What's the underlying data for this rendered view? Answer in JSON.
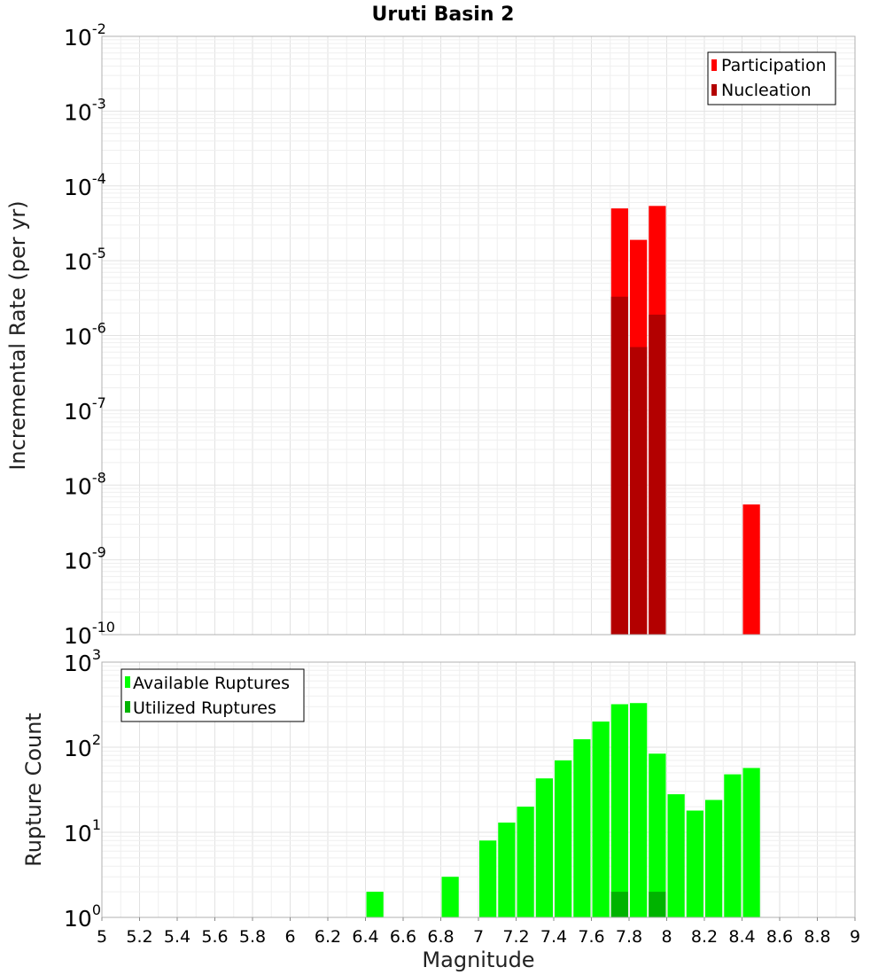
{
  "chart_data": [
    {
      "type": "bar",
      "title": "Uruti Basin 2",
      "xlabel": "",
      "ylabel": "Incremental Rate (per yr)",
      "yscale": "log",
      "ylim_exponents": [
        -10,
        -2
      ],
      "xlim": [
        5,
        9
      ],
      "grid": true,
      "legend_position": "top-right",
      "series": [
        {
          "name": "Participation",
          "color": "#ff0000",
          "points": [
            {
              "x": 7.75,
              "y": 5e-05
            },
            {
              "x": 7.85,
              "y": 1.9e-05
            },
            {
              "x": 7.95,
              "y": 5.4e-05
            },
            {
              "x": 8.45,
              "y": 5.5e-09
            }
          ]
        },
        {
          "name": "Nucleation",
          "color": "#b30000",
          "points": [
            {
              "x": 7.75,
              "y": 3.3e-06
            },
            {
              "x": 7.85,
              "y": 7e-07
            },
            {
              "x": 7.95,
              "y": 1.9e-06
            }
          ]
        }
      ]
    },
    {
      "type": "bar",
      "title": "",
      "xlabel": "Magnitude",
      "ylabel": "Rupture Count",
      "yscale": "log",
      "ylim_exponents": [
        0,
        3
      ],
      "xlim": [
        5,
        9
      ],
      "grid": true,
      "legend_position": "top-left",
      "x_ticks": [
        "5",
        "5.2",
        "5.4",
        "5.6",
        "5.8",
        "6",
        "6.2",
        "6.4",
        "6.6",
        "6.8",
        "7",
        "7.2",
        "7.4",
        "7.6",
        "7.8",
        "8",
        "8.2",
        "8.4",
        "8.6",
        "8.8",
        "9"
      ],
      "series": [
        {
          "name": "Available Ruptures",
          "color": "#00ff00",
          "points": [
            {
              "x": 6.45,
              "y": 2
            },
            {
              "x": 6.55,
              "y": 1
            },
            {
              "x": 6.85,
              "y": 3
            },
            {
              "x": 6.95,
              "y": 1
            },
            {
              "x": 7.05,
              "y": 8
            },
            {
              "x": 7.15,
              "y": 13
            },
            {
              "x": 7.25,
              "y": 20
            },
            {
              "x": 7.35,
              "y": 43
            },
            {
              "x": 7.45,
              "y": 70
            },
            {
              "x": 7.55,
              "y": 124
            },
            {
              "x": 7.65,
              "y": 200
            },
            {
              "x": 7.75,
              "y": 320
            },
            {
              "x": 7.85,
              "y": 330
            },
            {
              "x": 7.95,
              "y": 84
            },
            {
              "x": 8.05,
              "y": 28
            },
            {
              "x": 8.15,
              "y": 18
            },
            {
              "x": 8.25,
              "y": 24
            },
            {
              "x": 8.35,
              "y": 48
            },
            {
              "x": 8.45,
              "y": 57
            }
          ]
        },
        {
          "name": "Utilized Ruptures",
          "color": "#00b300",
          "points": [
            {
              "x": 7.75,
              "y": 2
            },
            {
              "x": 7.85,
              "y": 1
            },
            {
              "x": 7.95,
              "y": 2
            },
            {
              "x": 8.45,
              "y": 1
            }
          ]
        }
      ]
    }
  ]
}
